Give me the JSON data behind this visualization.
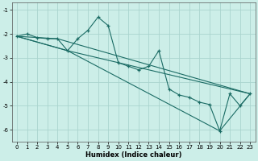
{
  "xlabel": "Humidex (Indice chaleur)",
  "bg_color": "#cceee8",
  "line_color": "#1a6b64",
  "grid_color": "#aad4ce",
  "xlim": [
    -0.5,
    23.5
  ],
  "ylim": [
    -6.5,
    -0.7
  ],
  "xticks": [
    0,
    1,
    2,
    3,
    4,
    5,
    6,
    7,
    8,
    9,
    10,
    11,
    12,
    13,
    14,
    15,
    16,
    17,
    18,
    19,
    20,
    21,
    22,
    23
  ],
  "yticks": [
    -1,
    -2,
    -3,
    -4,
    -5,
    -6
  ],
  "series": [
    [
      0,
      -2.1
    ],
    [
      1,
      -2.0
    ],
    [
      2,
      -2.15
    ],
    [
      3,
      -2.2
    ],
    [
      4,
      -2.2
    ],
    [
      5,
      -2.7
    ],
    [
      6,
      -2.2
    ],
    [
      7,
      -1.85
    ],
    [
      8,
      -1.3
    ],
    [
      9,
      -1.65
    ],
    [
      10,
      -3.2
    ],
    [
      11,
      -3.35
    ],
    [
      12,
      -3.5
    ],
    [
      13,
      -3.35
    ],
    [
      14,
      -2.7
    ],
    [
      15,
      -4.3
    ],
    [
      16,
      -4.55
    ],
    [
      17,
      -4.65
    ],
    [
      18,
      -4.85
    ],
    [
      19,
      -4.95
    ],
    [
      20,
      -6.05
    ],
    [
      21,
      -4.5
    ],
    [
      22,
      -5.0
    ],
    [
      23,
      -4.5
    ]
  ],
  "line2": [
    [
      0,
      -2.1
    ],
    [
      5,
      -2.7
    ],
    [
      23,
      -4.5
    ]
  ],
  "line3": [
    [
      0,
      -2.1
    ],
    [
      5,
      -2.7
    ],
    [
      20,
      -6.05
    ],
    [
      23,
      -4.5
    ]
  ],
  "line4": [
    [
      0,
      -2.1
    ],
    [
      4,
      -2.2
    ],
    [
      23,
      -4.5
    ]
  ]
}
